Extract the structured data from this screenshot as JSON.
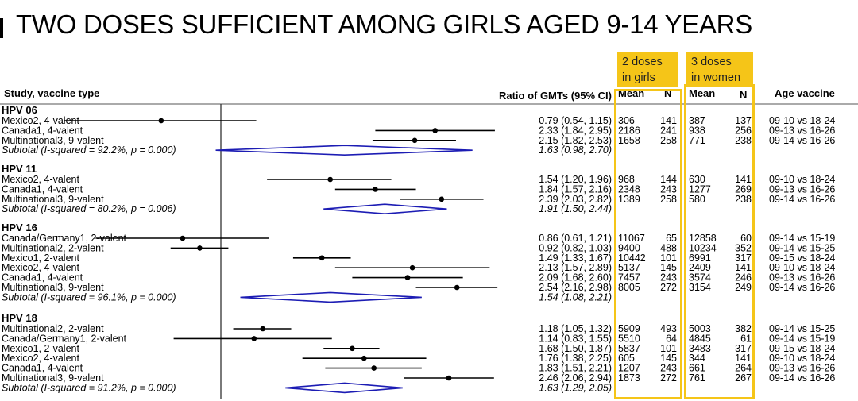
{
  "title": "TWO DOSES SUFFICIENT AMONG GIRLS AGED 9-14 YEARS",
  "highlight_labels": [
    "2 doses\nin girls",
    "3 doses\nin women"
  ],
  "columns": {
    "study": "Study, vaccine type",
    "ratio": "Ratio of GMTs (95% CI)",
    "mean_girls": "Mean",
    "n_girls": "N",
    "mean_women": "Mean",
    "n_women": "N",
    "age": "Age vaccine"
  },
  "colors": {
    "highlight": "#f5c518",
    "diamond": "#1c1cb4",
    "line": "#000000"
  },
  "chart_data": {
    "type": "forest",
    "xlim": [
      0.5,
      4.0
    ],
    "reference": 1,
    "groups": [
      {
        "name": "HPV 06",
        "rows": [
          {
            "label": "Mexico2, 4-valent",
            "est": 0.79,
            "lo": 0.54,
            "hi": 1.15,
            "ci": "0.79 (0.54, 1.15)",
            "m1": "306",
            "n1": "141",
            "m2": "387",
            "n2": "137",
            "age": "09-10 vs 18-24"
          },
          {
            "label": "Canada1, 4-valent",
            "est": 2.33,
            "lo": 1.84,
            "hi": 2.95,
            "ci": "2.33 (1.84, 2.95)",
            "m1": "2186",
            "n1": "241",
            "m2": "938",
            "n2": "256",
            "age": "09-13 vs 16-26"
          },
          {
            "label": "Multinational3, 9-valent",
            "est": 2.15,
            "lo": 1.82,
            "hi": 2.53,
            "ci": "2.15 (1.82, 2.53)",
            "m1": "1658",
            "n1": "258",
            "m2": "771",
            "n2": "238",
            "age": "09-14 vs 16-26"
          }
        ],
        "subtotal": {
          "label": "Subtotal  (I-squared = 92.2%, p = 0.000)",
          "est": 1.63,
          "lo": 0.98,
          "hi": 2.7,
          "ci": "1.63 (0.98, 2.70)"
        }
      },
      {
        "name": "HPV 11",
        "rows": [
          {
            "label": "Mexico2, 4-valent",
            "est": 1.54,
            "lo": 1.2,
            "hi": 1.96,
            "ci": "1.54 (1.20, 1.96)",
            "m1": "968",
            "n1": "144",
            "m2": "630",
            "n2": "141",
            "age": "09-10 vs 18-24"
          },
          {
            "label": "Canada1, 4-valent",
            "est": 1.84,
            "lo": 1.57,
            "hi": 2.16,
            "ci": "1.84 (1.57, 2.16)",
            "m1": "2348",
            "n1": "243",
            "m2": "1277",
            "n2": "269",
            "age": "09-13 vs 16-26"
          },
          {
            "label": "Multinational3, 9-valent",
            "est": 2.39,
            "lo": 2.03,
            "hi": 2.82,
            "ci": "2.39 (2.03, 2.82)",
            "m1": "1389",
            "n1": "258",
            "m2": "580",
            "n2": "238",
            "age": "09-14 vs 16-26"
          }
        ],
        "subtotal": {
          "label": "Subtotal  (I-squared = 80.2%, p = 0.006)",
          "est": 1.91,
          "lo": 1.5,
          "hi": 2.44,
          "ci": "1.91 (1.50, 2.44)"
        }
      },
      {
        "name": "HPV 16",
        "rows": [
          {
            "label": "Canada/Germany1, 2-valent",
            "est": 0.86,
            "lo": 0.61,
            "hi": 1.21,
            "ci": "0.86 (0.61, 1.21)",
            "m1": "11067",
            "n1": "65",
            "m2": "12858",
            "n2": "60",
            "age": "09-14 vs 15-19"
          },
          {
            "label": "Multinational2, 2-valent",
            "est": 0.92,
            "lo": 0.82,
            "hi": 1.03,
            "ci": "0.92 (0.82, 1.03)",
            "m1": "9400",
            "n1": "488",
            "m2": "10234",
            "n2": "352",
            "age": "09-14 vs 15-25"
          },
          {
            "label": "Mexico1, 2-valent",
            "est": 1.49,
            "lo": 1.33,
            "hi": 1.67,
            "ci": "1.49 (1.33, 1.67)",
            "m1": "10442",
            "n1": "101",
            "m2": "6991",
            "n2": "317",
            "age": "09-15 vs 18-24"
          },
          {
            "label": "Mexico2, 4-valent",
            "est": 2.13,
            "lo": 1.57,
            "hi": 2.89,
            "ci": "2.13 (1.57, 2.89)",
            "m1": "5137",
            "n1": "145",
            "m2": "2409",
            "n2": "141",
            "age": "09-10 vs 18-24"
          },
          {
            "label": "Canada1, 4-valent",
            "est": 2.09,
            "lo": 1.68,
            "hi": 2.6,
            "ci": "2.09 (1.68, 2.60)",
            "m1": "7457",
            "n1": "243",
            "m2": "3574",
            "n2": "246",
            "age": "09-13 vs 16-26"
          },
          {
            "label": "Multinational3, 9-valent",
            "est": 2.54,
            "lo": 2.16,
            "hi": 2.98,
            "ci": "2.54 (2.16, 2.98)",
            "m1": "8005",
            "n1": "272",
            "m2": "3154",
            "n2": "249",
            "age": "09-14 vs 16-26"
          }
        ],
        "subtotal": {
          "label": "Subtotal  (I-squared = 96.1%, p = 0.000)",
          "est": 1.54,
          "lo": 1.08,
          "hi": 2.21,
          "ci": "1.54 (1.08, 2.21)"
        }
      },
      {
        "name": "HPV 18",
        "rows": [
          {
            "label": "Multinational2, 2-valent",
            "est": 1.18,
            "lo": 1.05,
            "hi": 1.32,
            "ci": "1.18 (1.05, 1.32)",
            "m1": "5909",
            "n1": "493",
            "m2": "5003",
            "n2": "382",
            "age": "09-14 vs 15-25"
          },
          {
            "label": "Canada/Germany1, 2-valent",
            "est": 1.14,
            "lo": 0.83,
            "hi": 1.55,
            "ci": "1.14 (0.83, 1.55)",
            "m1": "5510",
            "n1": "64",
            "m2": "4845",
            "n2": "61",
            "age": "09-14 vs 15-19"
          },
          {
            "label": "Mexico1, 2-valent",
            "est": 1.68,
            "lo": 1.5,
            "hi": 1.87,
            "ci": "1.68 (1.50, 1.87)",
            "m1": "5837",
            "n1": "101",
            "m2": "3483",
            "n2": "317",
            "age": "09-15 vs 18-24"
          },
          {
            "label": "Mexico2, 4-valent",
            "est": 1.76,
            "lo": 1.38,
            "hi": 2.25,
            "ci": "1.76 (1.38, 2.25)",
            "m1": "605",
            "n1": "145",
            "m2": "344",
            "n2": "141",
            "age": "09-10 vs 18-24"
          },
          {
            "label": "Canada1, 4-valent",
            "est": 1.83,
            "lo": 1.51,
            "hi": 2.21,
            "ci": "1.83 (1.51, 2.21)",
            "m1": "1207",
            "n1": "243",
            "m2": "661",
            "n2": "264",
            "age": "09-13 vs 16-26"
          },
          {
            "label": "Multinational3, 9-valent",
            "est": 2.46,
            "lo": 2.06,
            "hi": 2.94,
            "ci": "2.46 (2.06, 2.94)",
            "m1": "1873",
            "n1": "272",
            "m2": "761",
            "n2": "267",
            "age": "09-14 vs 16-26"
          }
        ],
        "subtotal": {
          "label": "Subtotal  (I-squared = 91.2%, p = 0.000)",
          "est": 1.63,
          "lo": 1.29,
          "hi": 2.05,
          "ci": "1.63 (1.29, 2.05)"
        }
      }
    ]
  }
}
